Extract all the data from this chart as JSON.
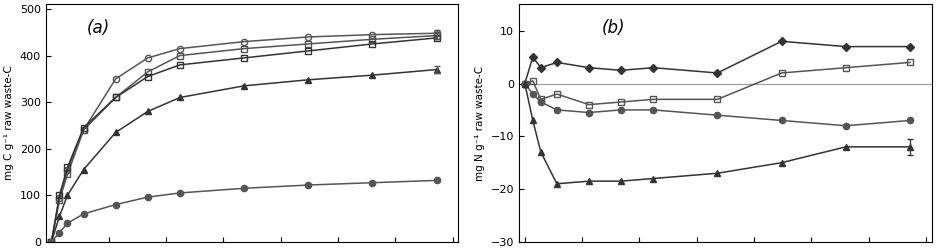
{
  "title_a": "(a)",
  "title_b": "(b)",
  "ylabel_a": "mg C g⁻¹ raw waste-C",
  "ylabel_b": "mg N g⁻¹ raw waste-C",
  "x": [
    0,
    7,
    14,
    28,
    56,
    84,
    112,
    168,
    224,
    280,
    336
  ],
  "a_line1": [
    0,
    95,
    155,
    240,
    350,
    395,
    415,
    430,
    440,
    445,
    448
  ],
  "a_line2": [
    0,
    90,
    145,
    240,
    310,
    365,
    400,
    415,
    425,
    435,
    443
  ],
  "a_line3": [
    0,
    100,
    160,
    245,
    310,
    355,
    380,
    395,
    410,
    425,
    438
  ],
  "a_line4": [
    0,
    55,
    100,
    155,
    235,
    280,
    310,
    335,
    348,
    358,
    370
  ],
  "a_line5": [
    0,
    20,
    40,
    60,
    80,
    96,
    105,
    115,
    122,
    127,
    132
  ],
  "b_line1": [
    0,
    5,
    3,
    4,
    3,
    2.5,
    3,
    2,
    8,
    7,
    7
  ],
  "b_line2": [
    0,
    0.5,
    -3,
    -2,
    -4,
    -3.5,
    -3,
    -3,
    2,
    3,
    4
  ],
  "b_line3": [
    0,
    -2,
    -3.5,
    -5,
    -5.5,
    -5,
    -5,
    -6,
    -7,
    -8,
    -7
  ],
  "b_line4": [
    0,
    -7,
    -13,
    -19,
    -18.5,
    -18.5,
    -18,
    -17,
    -15,
    -12,
    -12
  ],
  "ylim_a": [
    0,
    510
  ],
  "ylim_b": [
    -30,
    15
  ],
  "yticks_a": [
    0,
    100,
    200,
    300,
    400,
    500
  ],
  "yticks_b": [
    -30,
    -20,
    -10,
    0,
    10
  ],
  "bg_color": "#ffffff",
  "line_color": "#555555",
  "dark_color": "#333333"
}
